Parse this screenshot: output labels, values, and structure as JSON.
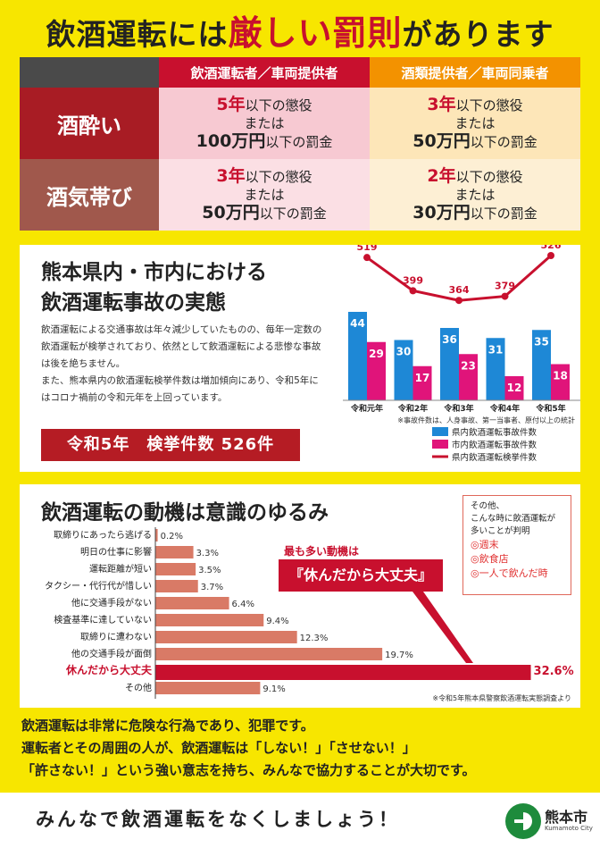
{
  "title": {
    "pre": "飲酒運転には",
    "highlight": "厳しい罰則",
    "post": "があります"
  },
  "penalty_table": {
    "headers": [
      "飲酒運転者／車両提供者",
      "酒類提供者／車両同乗者"
    ],
    "rows": [
      {
        "label": "酒酔い",
        "driver": {
          "years": "5年",
          "y_suffix": "以下の懲役",
          "or": "または",
          "fine": "100万円",
          "f_suffix": "以下の罰金"
        },
        "provider": {
          "years": "3年",
          "y_suffix": "以下の懲役",
          "or": "または",
          "fine": "50万円",
          "f_suffix": "以下の罰金"
        }
      },
      {
        "label": "酒気帯び",
        "driver": {
          "years": "3年",
          "y_suffix": "以下の懲役",
          "or": "または",
          "fine": "50万円",
          "f_suffix": "以下の罰金"
        },
        "provider": {
          "years": "2年",
          "y_suffix": "以下の懲役",
          "or": "または",
          "fine": "30万円",
          "f_suffix": "以下の罰金"
        }
      }
    ]
  },
  "accidents": {
    "heading_line1": "熊本県内・市内における",
    "heading_line2": "飲酒運転事故の実態",
    "desc1": "飲酒運転による交通事故は年々減少していたものの、毎年一定数の飲酒運転が検挙されており、依然として飲酒運転による悲惨な事故は後を絶ちません。",
    "desc2": "また、熊本県内の飲酒運転検挙件数は増加傾向にあり、令和5年にはコロナ禍前の令和元年を上回っています。",
    "count_box": "令和5年　検挙件数 526件",
    "note": "※事故件数は、人身事故、第一当事者、原付以上の統計",
    "legend": [
      "県内飲酒運転事故件数",
      "市内飲酒運転事故件数",
      "県内飲酒運転検挙件数"
    ]
  },
  "motives": {
    "heading": "飲酒運転の動機は意識のゆるみ",
    "callout_top": "最も多い動機は",
    "callout": "『休んだから大丈夫』",
    "source": "※令和5年熊本県警察飲酒運転実態調査より",
    "note_lines": [
      "その他、",
      "こんな時に飲酒運転が",
      "多いことが判明"
    ],
    "note_items": [
      "◎週末",
      "◎飲食店",
      "◎一人で飲んだ時"
    ]
  },
  "colors": {
    "red": "#c8102e",
    "blue": "#1e88d6",
    "magenta": "#e0147a",
    "salmon": "#d97a66",
    "yellow": "#f7e600"
  },
  "chart_data": [
    {
      "type": "bar",
      "categories": [
        "令和元年",
        "令和2年",
        "令和3年",
        "令和4年",
        "令和5年"
      ],
      "series": [
        {
          "name": "県内飲酒運転事故件数",
          "type": "bar",
          "values": [
            44,
            30,
            36,
            31,
            35
          ]
        },
        {
          "name": "市内飲酒運転事故件数",
          "type": "bar",
          "values": [
            29,
            17,
            23,
            12,
            18
          ]
        },
        {
          "name": "県内飲酒運転検挙件数",
          "type": "line",
          "values": [
            519,
            399,
            364,
            379,
            526
          ]
        }
      ],
      "legend": "bottom-right"
    },
    {
      "type": "bar",
      "orientation": "horizontal",
      "categories": [
        "取締りにあったら逃げる",
        "明日の仕事に影響",
        "運転距離が短い",
        "タクシー・代行代が惜しい",
        "他に交通手段がない",
        "検査基準に達していない",
        "取締りに遭わない",
        "他の交通手段が面倒",
        "休んだから大丈夫",
        "その他"
      ],
      "values": [
        0.2,
        3.3,
        3.5,
        3.7,
        6.4,
        9.4,
        12.3,
        19.7,
        32.6,
        9.1
      ],
      "labels": [
        "0.2%",
        "3.3%",
        "3.5%",
        "3.7%",
        "6.4%",
        "9.4%",
        "12.3%",
        "19.7%",
        "32.6%",
        "9.1%"
      ],
      "highlight_index": 8
    }
  ],
  "closing": {
    "line1": "飲酒運転は非常に危険な行為であり、犯罪です。",
    "line2": "運転者とその周囲の人が、飲酒運転は「しない！」「させない！」",
    "line3": "「許さない！」という強い意志を持ち、みんなで協力することが大切です。"
  },
  "footer": {
    "slogan": "みんなで飲酒運転をなくしましょう！",
    "city": "熊本市",
    "city_en": "Kumamoto City"
  }
}
